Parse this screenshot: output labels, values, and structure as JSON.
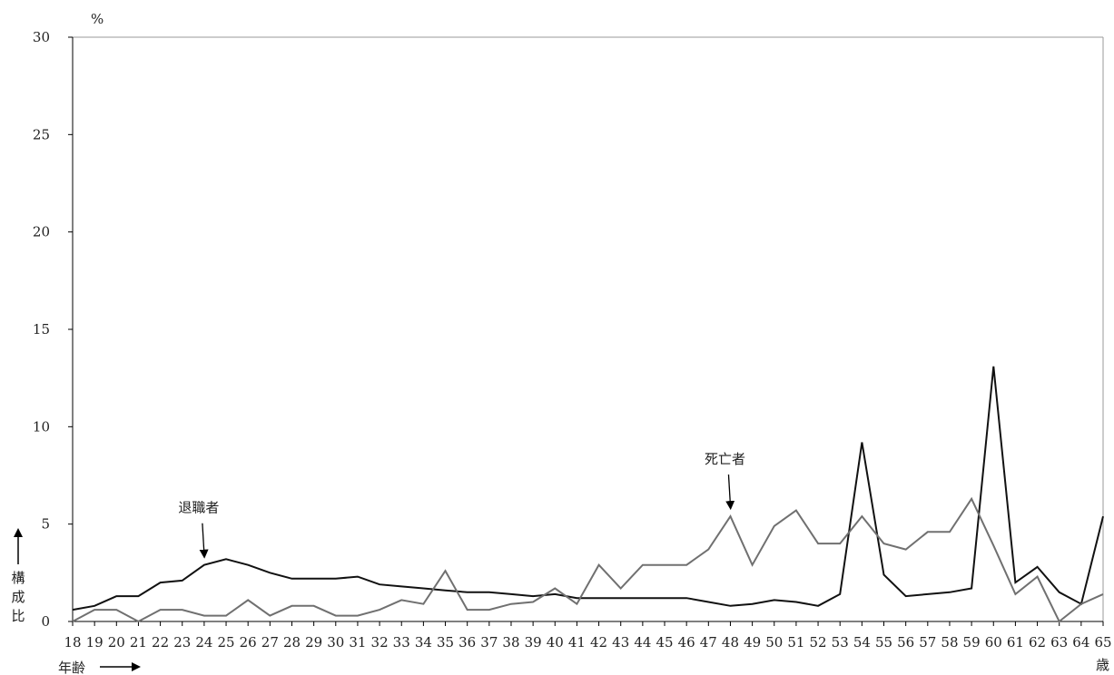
{
  "chart_data": {
    "type": "line",
    "title": "",
    "ylabel_unit": "%",
    "ylabel": "構成比",
    "xlabel": "年齢",
    "x_unit": "歳",
    "ylim": [
      0,
      30
    ],
    "yticks": [
      0,
      5,
      10,
      15,
      20,
      25,
      30
    ],
    "grid": false,
    "legend": "none (series labeled by annotations)",
    "x": [
      18,
      19,
      20,
      21,
      22,
      23,
      24,
      25,
      26,
      27,
      28,
      29,
      30,
      31,
      32,
      33,
      34,
      35,
      36,
      37,
      38,
      39,
      40,
      41,
      42,
      43,
      44,
      45,
      46,
      47,
      48,
      49,
      50,
      51,
      52,
      53,
      54,
      55,
      56,
      57,
      58,
      59,
      60,
      61,
      62,
      63,
      64,
      65
    ],
    "series": [
      {
        "name": "退職者",
        "color": "#111111",
        "values": [
          0.6,
          0.8,
          1.3,
          1.3,
          2.0,
          2.1,
          2.9,
          3.2,
          2.9,
          2.5,
          2.2,
          2.2,
          2.2,
          2.3,
          1.9,
          1.8,
          1.7,
          1.6,
          1.5,
          1.5,
          1.4,
          1.3,
          1.4,
          1.2,
          1.2,
          1.2,
          1.2,
          1.2,
          1.2,
          1.0,
          0.8,
          0.9,
          1.1,
          1.0,
          0.8,
          1.4,
          9.2,
          2.4,
          1.3,
          1.4,
          1.5,
          1.7,
          13.1,
          2.0,
          2.8,
          1.5,
          0.9,
          5.4
        ]
      },
      {
        "name": "死亡者",
        "color": "#707070",
        "values": [
          0.0,
          0.6,
          0.6,
          0.0,
          0.6,
          0.6,
          0.3,
          0.3,
          1.1,
          0.3,
          0.8,
          0.8,
          0.3,
          0.3,
          0.6,
          1.1,
          0.9,
          2.6,
          0.6,
          0.6,
          0.9,
          1.0,
          1.7,
          0.9,
          2.9,
          1.7,
          2.9,
          2.9,
          2.9,
          3.7,
          5.4,
          2.9,
          4.9,
          5.7,
          4.0,
          4.0,
          5.4,
          4.0,
          3.7,
          4.6,
          4.6,
          6.3,
          3.9,
          1.4,
          2.3,
          0.0,
          0.9,
          1.4
        ]
      }
    ],
    "annotations": [
      {
        "text": "退職者",
        "series": "退職者",
        "x": 24
      },
      {
        "text": "死亡者",
        "series": "死亡者",
        "x": 48
      }
    ]
  }
}
